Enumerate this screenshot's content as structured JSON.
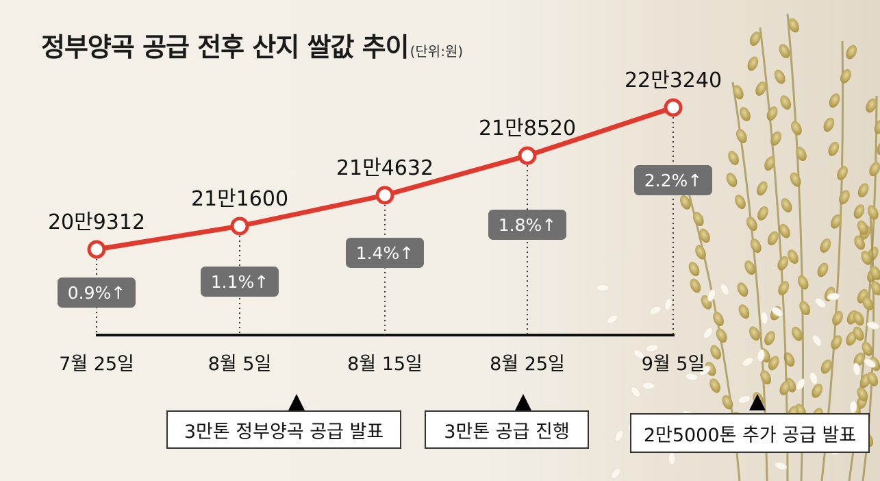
{
  "chart_data": {
    "type": "line",
    "title": "정부양곡 공급 전후 산지 쌀값 추이",
    "unit_note": "(단위:원)",
    "categories": [
      "7월 25일",
      "8월 5일",
      "8월 15일",
      "8월 25일",
      "9월 5일"
    ],
    "values": [
      209312,
      211600,
      214632,
      218520,
      223240
    ],
    "value_labels": [
      "20만9312",
      "21만1600",
      "21만4632",
      "21만8520",
      "22만3240"
    ],
    "change_labels": [
      "0.9%↑",
      "1.1%↑",
      "1.4%↑",
      "1.8%↑",
      "2.2%↑"
    ],
    "annotations": [
      "3만톤 정부양곡 공급 발표",
      "3만톤 공급 진행",
      "2만5000톤 추가 공급 발표"
    ],
    "colors": {
      "line": "#e03a2f",
      "badge": "#6f6f6f",
      "axis": "#111111"
    },
    "grid": false
  }
}
